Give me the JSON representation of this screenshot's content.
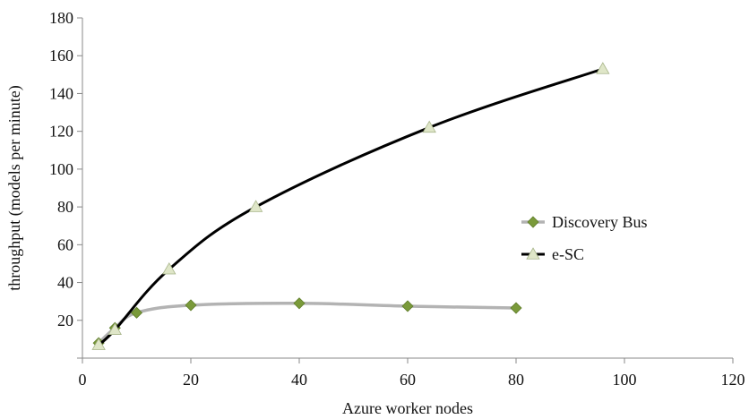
{
  "chart_data": {
    "type": "line",
    "title": "",
    "xlabel": "Azure worker nodes",
    "ylabel": "throughput (models per minute)",
    "xlim": [
      0,
      120
    ],
    "ylim": [
      0,
      180
    ],
    "x_ticks": [
      "0",
      "20",
      "40",
      "60",
      "80",
      "100",
      "120"
    ],
    "y_ticks": [
      "20",
      "40",
      "60",
      "80",
      "100",
      "120",
      "140",
      "160",
      "180"
    ],
    "grid": false,
    "legend_position": "right",
    "series": [
      {
        "name": "Discovery Bus",
        "color": "#b3b3b3",
        "marker": "diamond",
        "marker_color": "#7a9a3a",
        "x": [
          3,
          6,
          10,
          20,
          40,
          60,
          80
        ],
        "y": [
          8,
          16,
          24,
          28,
          29,
          27.5,
          26.5
        ]
      },
      {
        "name": "e-SC",
        "color": "#000000",
        "marker": "triangle",
        "marker_color": "#dfe6c8",
        "x": [
          3,
          6,
          16,
          32,
          64,
          96
        ],
        "y": [
          7,
          15,
          47,
          80,
          122,
          153
        ]
      }
    ]
  }
}
